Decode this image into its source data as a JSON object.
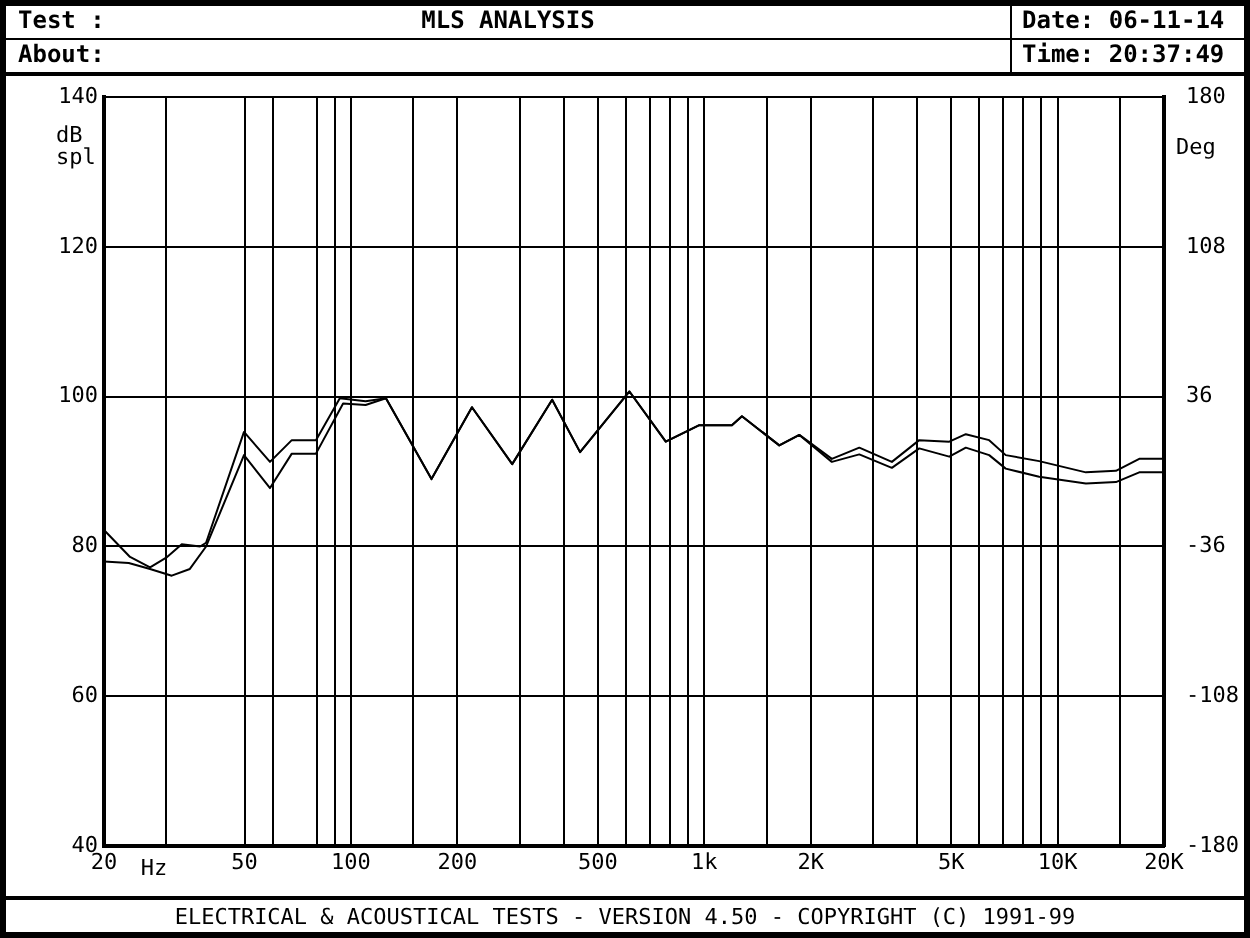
{
  "chart_data": {
    "type": "line",
    "title": "MLS ANALYSIS",
    "xlabel": "Hz",
    "ylabel": "dB spl",
    "y2label": "Deg",
    "annotations": [
      "Test :",
      "About:",
      "Date: 06-11-14",
      "Time: 20:37:49",
      "ELECTRICAL & ACOUSTICAL TESTS - VERSION 4.50 - COPYRIGHT (C) 1991-99"
    ],
    "log": "x",
    "grid": true,
    "legend": false,
    "marker": "none",
    "line_style": "solid",
    "xlim": [
      20,
      20000
    ],
    "xticks": [
      20,
      {
        "value": 30,
        "label": null
      },
      50,
      {
        "value": 60,
        "label": null
      },
      {
        "value": 80,
        "label": null
      },
      {
        "value": 90,
        "label": null
      },
      100,
      {
        "value": 150,
        "label": null
      },
      200,
      {
        "value": 300,
        "label": null
      },
      {
        "value": 400,
        "label": null
      },
      500,
      {
        "value": 600,
        "label": null
      },
      {
        "value": 700,
        "label": null
      },
      {
        "value": 800,
        "label": null
      },
      {
        "value": 900,
        "label": null
      },
      {
        "value": 1000,
        "label": "1k"
      },
      {
        "value": 1500,
        "label": null
      },
      {
        "value": 2000,
        "label": "2K"
      },
      {
        "value": 3000,
        "label": null
      },
      {
        "value": 4000,
        "label": null
      },
      {
        "value": 5000,
        "label": "5K"
      },
      {
        "value": 6000,
        "label": null
      },
      {
        "value": 7000,
        "label": null
      },
      {
        "value": 8000,
        "label": null
      },
      {
        "value": 9000,
        "label": null
      },
      {
        "value": 10000,
        "label": "10K"
      },
      {
        "value": 15000,
        "label": null
      },
      {
        "value": 20000,
        "label": "20K"
      }
    ],
    "ylim": [
      40,
      140
    ],
    "yticks": [
      40,
      60,
      80,
      100,
      120,
      140
    ],
    "y2lim": [
      -180,
      180
    ],
    "y2ticks": [
      -180,
      -108,
      -36,
      36,
      108,
      180
    ],
    "series": [
      {
        "color": "#000000",
        "x": [
          20,
          23.7,
          27,
          30,
          33.2,
          37.4,
          38.9,
          49.8,
          59,
          68,
          79.6,
          93,
          110,
          125.6,
          169,
          220,
          286,
          371,
          445,
          614,
          778,
          968,
          1197,
          1278,
          1630,
          1858,
          2296,
          2746,
          3395,
          4058,
          4935,
          5497,
          6400,
          7130,
          8865,
          12020,
          14620,
          17020,
          20000
        ],
        "values": [
          82.2,
          78.6,
          77.2,
          78.5,
          80.3,
          80.0,
          80.5,
          95.3,
          91.3,
          94.2,
          94.2,
          99.8,
          99.4,
          99.8,
          89.0,
          98.6,
          91.0,
          99.6,
          92.6,
          100.7,
          94.0,
          96.2,
          96.2,
          97.4,
          93.5,
          94.9,
          91.7,
          93.2,
          91.3,
          94.2,
          94.0,
          95.0,
          94.2,
          92.2,
          91.4,
          89.9,
          90.1,
          91.7,
          91.7
        ]
      },
      {
        "color": "#000000",
        "x": [
          20,
          23.5,
          27,
          31.1,
          35,
          38.9,
          49.8,
          59,
          68,
          79.6,
          95,
          110,
          125.6,
          169,
          220,
          286,
          371,
          445,
          614,
          778,
          968,
          1197,
          1278,
          1630,
          1858,
          2296,
          2746,
          3395,
          4058,
          4935,
          5497,
          6400,
          7130,
          8865,
          12020,
          14620,
          17020,
          20000
        ],
        "values": [
          78.0,
          77.8,
          77.0,
          76.1,
          77.0,
          80.0,
          92.2,
          87.8,
          92.4,
          92.4,
          99.1,
          98.9,
          99.8,
          89.0,
          98.6,
          91.0,
          99.6,
          92.6,
          100.7,
          94.0,
          96.2,
          96.2,
          97.4,
          93.5,
          94.9,
          91.3,
          92.3,
          90.5,
          93.1,
          92.0,
          93.2,
          92.2,
          90.4,
          89.3,
          88.4,
          88.6,
          89.9,
          89.9
        ]
      }
    ]
  }
}
